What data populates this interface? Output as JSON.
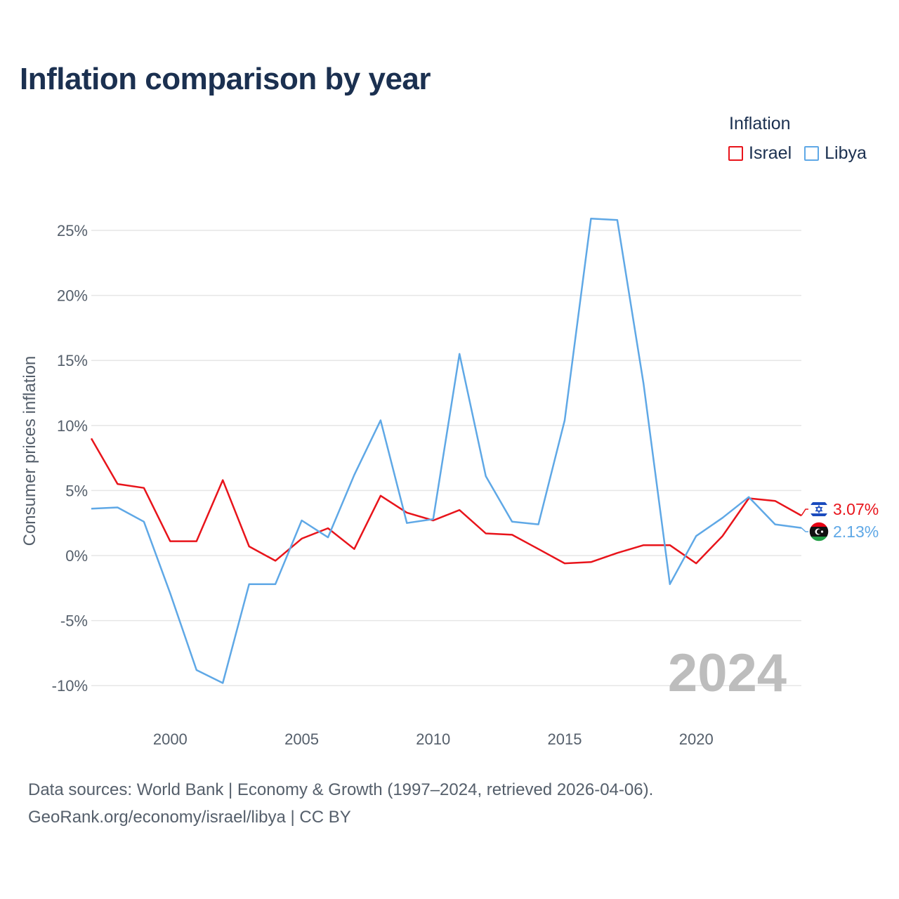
{
  "title": "Inflation comparison by year",
  "legend": {
    "title": "Inflation",
    "items": [
      {
        "label": "Israel",
        "color": "#e8141b"
      },
      {
        "label": "Libya",
        "color": "#5fa8e6"
      }
    ]
  },
  "footer": {
    "line1": "Data sources: World Bank | Economy & Growth (1997–2024, retrieved 2026-04-06).",
    "line2": "GeoRank.org/economy/israel/libya | CC BY"
  },
  "chart_data": {
    "type": "line",
    "title": "Inflation comparison by year",
    "xlabel": "",
    "ylabel": "Consumer prices inflation",
    "xlim": [
      1997,
      2024
    ],
    "ylim": [
      -12,
      27
    ],
    "x_ticks": [
      2000,
      2005,
      2010,
      2015,
      2020
    ],
    "y_ticks": [
      -10,
      -5,
      0,
      5,
      10,
      15,
      20,
      25
    ],
    "y_tick_labels": [
      "-10%",
      "-5%",
      "0%",
      "5%",
      "10%",
      "15%",
      "20%",
      "25%"
    ],
    "grid": true,
    "legend_position": "top-right",
    "watermark_year": "2024",
    "x": [
      1997,
      1998,
      1999,
      2000,
      2001,
      2002,
      2003,
      2004,
      2005,
      2006,
      2007,
      2008,
      2009,
      2010,
      2011,
      2012,
      2013,
      2014,
      2015,
      2016,
      2017,
      2018,
      2019,
      2020,
      2021,
      2022,
      2023,
      2024
    ],
    "series": [
      {
        "name": "Israel",
        "color": "#e8141b",
        "end_label": "3.07%",
        "flag": "israel-flag",
        "values": [
          9.0,
          5.5,
          5.2,
          1.1,
          1.1,
          5.8,
          0.7,
          -0.4,
          1.3,
          2.1,
          0.5,
          4.6,
          3.3,
          2.7,
          3.5,
          1.7,
          1.6,
          0.5,
          -0.6,
          -0.5,
          0.2,
          0.8,
          0.8,
          -0.6,
          1.5,
          4.4,
          4.2,
          3.07
        ]
      },
      {
        "name": "Libya",
        "color": "#5fa8e6",
        "end_label": "2.13%",
        "flag": "libya-flag",
        "values": [
          3.6,
          3.7,
          2.6,
          -2.9,
          -8.8,
          -9.8,
          -2.2,
          -2.2,
          2.7,
          1.4,
          6.2,
          10.4,
          2.5,
          2.8,
          15.5,
          6.1,
          2.6,
          2.4,
          10.4,
          25.9,
          25.8,
          13.2,
          -2.2,
          1.5,
          2.9,
          4.5,
          2.4,
          2.13
        ]
      }
    ]
  }
}
